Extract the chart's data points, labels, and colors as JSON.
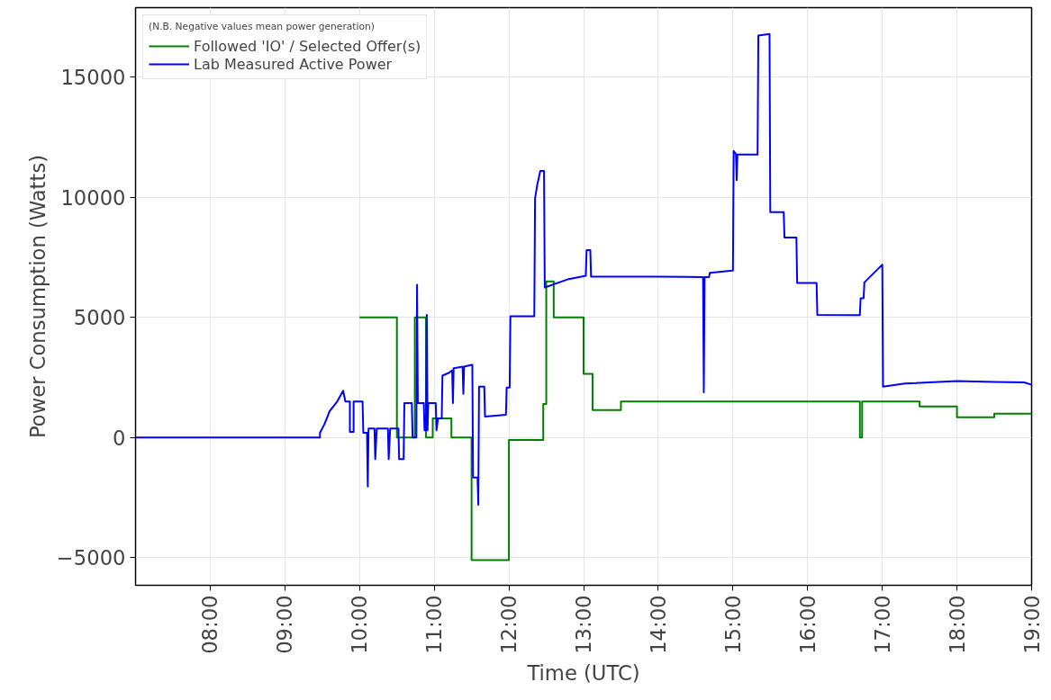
{
  "chart_data": {
    "type": "line",
    "xlabel": "Time (UTC)",
    "ylabel": "Power Consumption (Watts)",
    "legend_title": "(N.B. Negative values mean power generation)",
    "legend": "top left",
    "grid": true,
    "xlim": [
      7.0,
      19.0
    ],
    "ylim": [
      -6150,
      17900
    ],
    "xticks": [
      {
        "value": 8,
        "label": "08:00"
      },
      {
        "value": 9,
        "label": "09:00"
      },
      {
        "value": 10,
        "label": "10:00"
      },
      {
        "value": 11,
        "label": "11:00"
      },
      {
        "value": 12,
        "label": "12:00"
      },
      {
        "value": 13,
        "label": "13:00"
      },
      {
        "value": 14,
        "label": "14:00"
      },
      {
        "value": 15,
        "label": "15:00"
      },
      {
        "value": 16,
        "label": "16:00"
      },
      {
        "value": 17,
        "label": "17:00"
      },
      {
        "value": 18,
        "label": "18:00"
      },
      {
        "value": 19,
        "label": "19:00"
      }
    ],
    "yticks": [
      -5000,
      0,
      5000,
      10000,
      15000
    ],
    "series": [
      {
        "name": "Followed 'IO' / Selected Offer(s)",
        "color": "#008000",
        "x": [
          10.0,
          10.5,
          10.5,
          10.74,
          10.74,
          10.89,
          10.89,
          10.98,
          10.98,
          11.23,
          11.23,
          11.5,
          11.5,
          12.0,
          12.0,
          12.46,
          12.46,
          12.5,
          12.5,
          12.6,
          12.6,
          13.0,
          13.0,
          13.12,
          13.12,
          13.5,
          13.5,
          16.7,
          16.7,
          16.73,
          16.73,
          17.5,
          17.5,
          18.0,
          18.0,
          18.5,
          18.5,
          19.0
        ],
        "values": [
          5000,
          5000,
          0,
          0,
          5000,
          5000,
          0,
          0,
          800,
          800,
          0,
          0,
          -5100,
          -5100,
          -100,
          -100,
          1400,
          1400,
          6500,
          6500,
          5000,
          5000,
          2650,
          2650,
          1150,
          1150,
          1500,
          1500,
          0,
          0,
          1500,
          1500,
          1300,
          1300,
          850,
          850,
          1000,
          1000
        ]
      },
      {
        "name": "Lab Measured Active Power",
        "color": "#0000ff",
        "x": [
          7.0,
          9.47,
          9.47,
          9.53,
          9.6,
          9.7,
          9.78,
          9.81,
          9.87,
          9.87,
          9.92,
          9.92,
          10.04,
          10.05,
          10.1,
          10.11,
          10.12,
          10.2,
          10.21,
          10.23,
          10.38,
          10.39,
          10.41,
          10.52,
          10.53,
          10.59,
          10.6,
          10.7,
          10.71,
          10.76,
          10.77,
          10.78,
          10.86,
          10.87,
          10.89,
          10.9,
          10.91,
          10.92,
          11.02,
          11.03,
          11.05,
          11.1,
          11.11,
          11.2,
          11.24,
          11.25,
          11.26,
          11.38,
          11.39,
          11.4,
          11.5,
          11.51,
          11.52,
          11.58,
          11.59,
          11.6,
          11.67,
          11.68,
          11.96,
          11.97,
          12.01,
          12.02,
          12.34,
          12.35,
          12.38,
          12.42,
          12.47,
          12.48,
          12.8,
          13.03,
          13.04,
          13.09,
          13.1,
          13.5,
          14.0,
          14.6,
          14.61,
          14.62,
          14.68,
          14.69,
          14.99,
          15.0,
          15.01,
          15.04,
          15.05,
          15.06,
          15.33,
          15.34,
          15.49,
          15.5,
          15.68,
          15.69,
          15.85,
          15.86,
          16.12,
          16.13,
          16.7,
          16.71,
          16.75,
          16.76,
          17.0,
          17.01,
          17.3,
          18.0,
          18.5,
          18.9,
          19.0
        ],
        "values": [
          0,
          0,
          200,
          560,
          1100,
          1500,
          1950,
          1500,
          1500,
          240,
          240,
          1500,
          1500,
          200,
          200,
          -2040,
          380,
          380,
          -900,
          380,
          380,
          -900,
          380,
          380,
          -900,
          -900,
          1440,
          1440,
          0,
          0,
          6360,
          1440,
          1440,
          300,
          300,
          5110,
          300,
          1440,
          1440,
          300,
          800,
          800,
          2580,
          2700,
          2800,
          1440,
          2890,
          2950,
          1820,
          2950,
          3030,
          3030,
          -1660,
          -1660,
          -2800,
          2120,
          2120,
          870,
          950,
          2080,
          2080,
          5050,
          5050,
          9960,
          10530,
          11100,
          11100,
          6250,
          6600,
          6740,
          7800,
          7800,
          6700,
          6700,
          6700,
          6680,
          1890,
          6680,
          6680,
          6860,
          6950,
          6950,
          11930,
          11800,
          10720,
          11780,
          11780,
          16740,
          16800,
          9390,
          9390,
          8330,
          8330,
          6440,
          6440,
          5110,
          5100,
          5800,
          5800,
          6460,
          7200,
          2120,
          2250,
          2350,
          2320,
          2300,
          2200
        ]
      }
    ]
  }
}
